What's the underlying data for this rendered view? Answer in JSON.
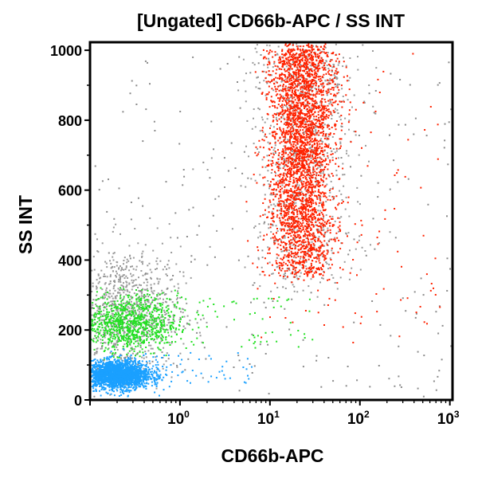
{
  "chart_data": {
    "type": "scatter",
    "title": "[Ungated] CD66b-APC / SS INT",
    "xlabel": "CD66b-APC",
    "ylabel": "SS INT",
    "x_scale": "log",
    "xlim": [
      0.1,
      1070
    ],
    "ylim": [
      0,
      1023
    ],
    "x_ticks": [
      {
        "base": "10",
        "exp": "0",
        "value": 1
      },
      {
        "base": "10",
        "exp": "1",
        "value": 10
      },
      {
        "base": "10",
        "exp": "2",
        "value": 100
      },
      {
        "base": "10",
        "exp": "3",
        "value": 1000
      }
    ],
    "y_ticks": [
      {
        "label": "0",
        "value": 0
      },
      {
        "label": "200",
        "value": 200
      },
      {
        "label": "400",
        "value": 400
      },
      {
        "label": "600",
        "value": 600
      },
      {
        "label": "800",
        "value": 800
      },
      {
        "label": "1000",
        "value": 1000
      }
    ],
    "grid": false,
    "populations": [
      {
        "color": "#9a9a9a",
        "center_x": 22,
        "x_log_sd": 0.3,
        "y_range": [
          330,
          1023
        ],
        "count": 900
      },
      {
        "color": "#9a9a9a",
        "center_x": 0.25,
        "x_log_sd": 0.3,
        "center_y": 260,
        "y_sd": 90,
        "count": 900
      },
      {
        "color": "#ff2200",
        "center_x": 22,
        "x_log_sd": 0.18,
        "y_range": [
          360,
          1010
        ],
        "count": 3200
      },
      {
        "color": "#22e022",
        "center_x": 0.25,
        "x_log_sd": 0.28,
        "center_y": 220,
        "y_sd": 40,
        "count": 900
      },
      {
        "color": "#1aa0ff",
        "center_x": 0.2,
        "x_log_sd": 0.18,
        "center_y": 75,
        "y_sd": 20,
        "count": 2200
      }
    ],
    "colors": {
      "granulocytes": "#ff2200",
      "monocytes": "#22e022",
      "lymphocytes": "#1aa0ff",
      "ungated": "#9a9a9a"
    }
  }
}
